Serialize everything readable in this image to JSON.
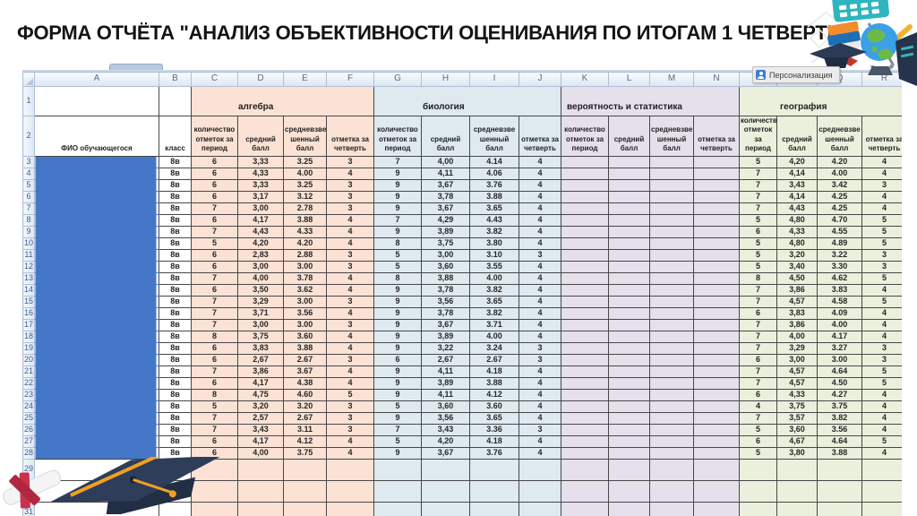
{
  "title": "ФОРМА ОТЧЁТА \"АНАЛИЗ ОБЪЕКТИВНОСТИ ОЦЕНИВАНИЯ ПО ИТОГАМ 1 ЧЕТВЕРТИ\"",
  "popup": {
    "label": "Персонализация",
    "icon": "personalization-icon"
  },
  "colors": {
    "algebra_bg": "#FBE2D5",
    "biology_bg": "#DEEAF0",
    "probability_bg": "#E6E0EC",
    "geography_bg": "#EAF0DC",
    "name_mask_fill": "#4577C8",
    "grid_border": "#474747"
  },
  "sheet": {
    "column_letters": [
      "A",
      "B",
      "C",
      "D",
      "E",
      "F",
      "G",
      "H",
      "I",
      "J",
      "K",
      "L",
      "M",
      "N",
      "O",
      "P",
      "Q",
      "R"
    ],
    "row_numbers": [
      1,
      2,
      3,
      4,
      5,
      6,
      7,
      8,
      9,
      10,
      11,
      12,
      13,
      14,
      15,
      16,
      17,
      18,
      19,
      20,
      21,
      22,
      23,
      24,
      25,
      26,
      27,
      28,
      29,
      30,
      31
    ],
    "header_row1": {
      "sections": [
        {
          "key": "algebra",
          "label": "алгебра"
        },
        {
          "key": "biology",
          "label": "биология"
        },
        {
          "key": "probability",
          "label": "вероятность и статистика"
        },
        {
          "key": "geography",
          "label": "география"
        }
      ]
    },
    "header_row2": {
      "fio": "ФИО обучающегося",
      "klass": "класс",
      "metrics": [
        "количество отметок за период",
        "средний балл",
        "средневзве шенный балл",
        "отметка за четверть"
      ]
    },
    "rows": [
      {
        "n": 3,
        "klass": "8в",
        "algebra": [
          "6",
          "3,33",
          "3.25",
          "3"
        ],
        "biology": [
          "7",
          "4,00",
          "4.14",
          "4"
        ],
        "probability": [
          "",
          "",
          "",
          ""
        ],
        "geography": [
          "5",
          "4,20",
          "4.20",
          "4"
        ]
      },
      {
        "n": 4,
        "klass": "8в",
        "algebra": [
          "6",
          "4,33",
          "4.00",
          "4"
        ],
        "biology": [
          "9",
          "4,11",
          "4.06",
          "4"
        ],
        "probability": [
          "",
          "",
          "",
          ""
        ],
        "geography": [
          "7",
          "4,14",
          "4.00",
          "4"
        ]
      },
      {
        "n": 5,
        "klass": "8в",
        "algebra": [
          "6",
          "3,33",
          "3.25",
          "3"
        ],
        "biology": [
          "9",
          "3,67",
          "3.76",
          "4"
        ],
        "probability": [
          "",
          "",
          "",
          ""
        ],
        "geography": [
          "7",
          "3,43",
          "3.42",
          "3"
        ]
      },
      {
        "n": 6,
        "klass": "8в",
        "algebra": [
          "6",
          "3,17",
          "3.12",
          "3"
        ],
        "biology": [
          "9",
          "3,78",
          "3.88",
          "4"
        ],
        "probability": [
          "",
          "",
          "",
          ""
        ],
        "geography": [
          "7",
          "4,14",
          "4.25",
          "4"
        ]
      },
      {
        "n": 7,
        "klass": "8в",
        "algebra": [
          "7",
          "3,00",
          "2.78",
          "3"
        ],
        "biology": [
          "9",
          "3,67",
          "3.65",
          "4"
        ],
        "probability": [
          "",
          "",
          "",
          ""
        ],
        "geography": [
          "7",
          "4,43",
          "4.25",
          "4"
        ]
      },
      {
        "n": 8,
        "klass": "8в",
        "algebra": [
          "6",
          "4,17",
          "3.88",
          "4"
        ],
        "biology": [
          "7",
          "4,29",
          "4.43",
          "4"
        ],
        "probability": [
          "",
          "",
          "",
          ""
        ],
        "geography": [
          "5",
          "4,80",
          "4.70",
          "5"
        ]
      },
      {
        "n": 9,
        "klass": "8в",
        "algebra": [
          "7",
          "4,43",
          "4.33",
          "4"
        ],
        "biology": [
          "9",
          "3,89",
          "3.82",
          "4"
        ],
        "probability": [
          "",
          "",
          "",
          ""
        ],
        "geography": [
          "6",
          "4,33",
          "4.55",
          "5"
        ]
      },
      {
        "n": 10,
        "klass": "8в",
        "algebra": [
          "5",
          "4,20",
          "4.20",
          "4"
        ],
        "biology": [
          "8",
          "3,75",
          "3.80",
          "4"
        ],
        "probability": [
          "",
          "",
          "",
          ""
        ],
        "geography": [
          "5",
          "4,80",
          "4.89",
          "5"
        ]
      },
      {
        "n": 11,
        "klass": "8в",
        "algebra": [
          "6",
          "2,83",
          "2.88",
          "3"
        ],
        "biology": [
          "5",
          "3,00",
          "3.10",
          "3"
        ],
        "probability": [
          "",
          "",
          "",
          ""
        ],
        "geography": [
          "5",
          "3,20",
          "3.22",
          "3"
        ]
      },
      {
        "n": 12,
        "klass": "8в",
        "algebra": [
          "6",
          "3,00",
          "3.00",
          "3"
        ],
        "biology": [
          "5",
          "3,60",
          "3.55",
          "4"
        ],
        "probability": [
          "",
          "",
          "",
          ""
        ],
        "geography": [
          "5",
          "3,40",
          "3.30",
          "3"
        ]
      },
      {
        "n": 13,
        "klass": "8в",
        "algebra": [
          "7",
          "4,00",
          "3.78",
          "4"
        ],
        "biology": [
          "8",
          "3,88",
          "4.00",
          "4"
        ],
        "probability": [
          "",
          "",
          "",
          ""
        ],
        "geography": [
          "8",
          "4,50",
          "4.62",
          "5"
        ]
      },
      {
        "n": 14,
        "klass": "8в",
        "algebra": [
          "6",
          "3,50",
          "3.62",
          "4"
        ],
        "biology": [
          "9",
          "3,78",
          "3.82",
          "4"
        ],
        "probability": [
          "",
          "",
          "",
          ""
        ],
        "geography": [
          "7",
          "3,86",
          "3.83",
          "4"
        ]
      },
      {
        "n": 15,
        "klass": "8в",
        "algebra": [
          "7",
          "3,29",
          "3.00",
          "3"
        ],
        "biology": [
          "9",
          "3,56",
          "3.65",
          "4"
        ],
        "probability": [
          "",
          "",
          "",
          ""
        ],
        "geography": [
          "7",
          "4,57",
          "4.58",
          "5"
        ]
      },
      {
        "n": 16,
        "klass": "8в",
        "algebra": [
          "7",
          "3,71",
          "3.56",
          "4"
        ],
        "biology": [
          "9",
          "3,78",
          "3.82",
          "4"
        ],
        "probability": [
          "",
          "",
          "",
          ""
        ],
        "geography": [
          "6",
          "3,83",
          "4.09",
          "4"
        ]
      },
      {
        "n": 17,
        "klass": "8в",
        "algebra": [
          "7",
          "3,00",
          "3.00",
          "3"
        ],
        "biology": [
          "9",
          "3,67",
          "3.71",
          "4"
        ],
        "probability": [
          "",
          "",
          "",
          ""
        ],
        "geography": [
          "7",
          "3,86",
          "4.00",
          "4"
        ]
      },
      {
        "n": 18,
        "klass": "8в",
        "algebra": [
          "8",
          "3,75",
          "3.60",
          "4"
        ],
        "biology": [
          "9",
          "3,89",
          "4.00",
          "4"
        ],
        "probability": [
          "",
          "",
          "",
          ""
        ],
        "geography": [
          "7",
          "4,00",
          "4.17",
          "4"
        ]
      },
      {
        "n": 19,
        "klass": "8в",
        "algebra": [
          "6",
          "3,83",
          "3.88",
          "4"
        ],
        "biology": [
          "9",
          "3,22",
          "3.24",
          "3"
        ],
        "probability": [
          "",
          "",
          "",
          ""
        ],
        "geography": [
          "7",
          "3,29",
          "3.27",
          "3"
        ]
      },
      {
        "n": 20,
        "klass": "8в",
        "algebra": [
          "6",
          "2,67",
          "2.67",
          "3"
        ],
        "biology": [
          "6",
          "2,67",
          "2.67",
          "3"
        ],
        "probability": [
          "",
          "",
          "",
          ""
        ],
        "geography": [
          "6",
          "3,00",
          "3.00",
          "3"
        ]
      },
      {
        "n": 21,
        "klass": "8в",
        "algebra": [
          "7",
          "3,86",
          "3.67",
          "4"
        ],
        "biology": [
          "9",
          "4,11",
          "4.18",
          "4"
        ],
        "probability": [
          "",
          "",
          "",
          ""
        ],
        "geography": [
          "7",
          "4,57",
          "4.64",
          "5"
        ]
      },
      {
        "n": 22,
        "klass": "8в",
        "algebra": [
          "6",
          "4,17",
          "4.38",
          "4"
        ],
        "biology": [
          "9",
          "3,89",
          "3.88",
          "4"
        ],
        "probability": [
          "",
          "",
          "",
          ""
        ],
        "geography": [
          "7",
          "4,57",
          "4.50",
          "5"
        ]
      },
      {
        "n": 23,
        "klass": "8в",
        "algebra": [
          "8",
          "4,75",
          "4.60",
          "5"
        ],
        "biology": [
          "9",
          "4,11",
          "4.12",
          "4"
        ],
        "probability": [
          "",
          "",
          "",
          ""
        ],
        "geography": [
          "6",
          "4,33",
          "4.27",
          "4"
        ]
      },
      {
        "n": 24,
        "klass": "8в",
        "algebra": [
          "5",
          "3,20",
          "3.20",
          "3"
        ],
        "biology": [
          "5",
          "3,60",
          "3.60",
          "4"
        ],
        "probability": [
          "",
          "",
          "",
          ""
        ],
        "geography": [
          "4",
          "3,75",
          "3.75",
          "4"
        ]
      },
      {
        "n": 25,
        "klass": "8в",
        "algebra": [
          "7",
          "2,57",
          "2.67",
          "3"
        ],
        "biology": [
          "9",
          "3,56",
          "3.65",
          "4"
        ],
        "probability": [
          "",
          "",
          "",
          ""
        ],
        "geography": [
          "7",
          "3,57",
          "3.82",
          "4"
        ]
      },
      {
        "n": 26,
        "klass": "8в",
        "algebra": [
          "7",
          "3,43",
          "3.11",
          "3"
        ],
        "biology": [
          "7",
          "3,43",
          "3.36",
          "3"
        ],
        "probability": [
          "",
          "",
          "",
          ""
        ],
        "geography": [
          "5",
          "3,60",
          "3.56",
          "4"
        ]
      },
      {
        "n": 27,
        "klass": "8в",
        "algebra": [
          "6",
          "4,17",
          "4.12",
          "4"
        ],
        "biology": [
          "5",
          "4,20",
          "4.18",
          "4"
        ],
        "probability": [
          "",
          "",
          "",
          ""
        ],
        "geography": [
          "6",
          "4,67",
          "4.64",
          "5"
        ]
      },
      {
        "n": 28,
        "klass": "8в",
        "algebra": [
          "6",
          "4,00",
          "3.75",
          "4"
        ],
        "biology": [
          "9",
          "3,67",
          "3.76",
          "4"
        ],
        "probability": [
          "",
          "",
          "",
          ""
        ],
        "geography": [
          "5",
          "3,80",
          "3.88",
          "4"
        ]
      }
    ],
    "empty_row_numbers": [
      29,
      30,
      31
    ]
  },
  "decorations": {
    "top_right_icons": [
      "calculator-icon",
      "globe-icon",
      "books-icon",
      "graduation-cap-icon",
      "laptop-icon",
      "arrow-icon"
    ],
    "bottom_left_icons": [
      "diploma-scroll-icon",
      "graduation-cap-icon"
    ]
  }
}
